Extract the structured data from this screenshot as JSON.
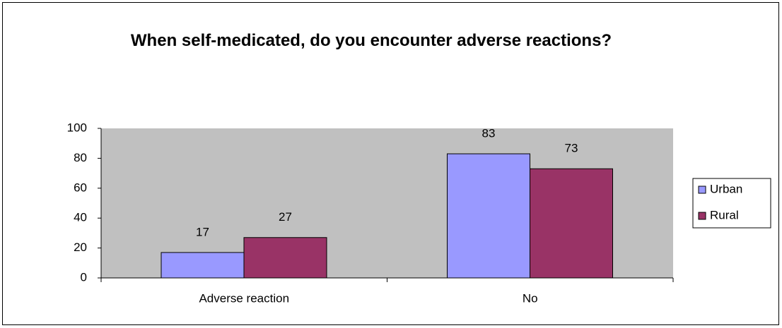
{
  "chart_data": {
    "type": "bar",
    "title": "When self-medicated, do you encounter adverse reactions?",
    "categories": [
      "Adverse reaction",
      "No"
    ],
    "series": [
      {
        "name": "Urban",
        "color": "#9999ff",
        "values": [
          17,
          83
        ]
      },
      {
        "name": "Rural",
        "color": "#993366",
        "values": [
          27,
          73
        ]
      }
    ],
    "ylim": [
      0,
      100
    ],
    "yticks": [
      0,
      20,
      40,
      60,
      80,
      100
    ],
    "legend": "right",
    "plot_background": "#c0c0c0"
  }
}
